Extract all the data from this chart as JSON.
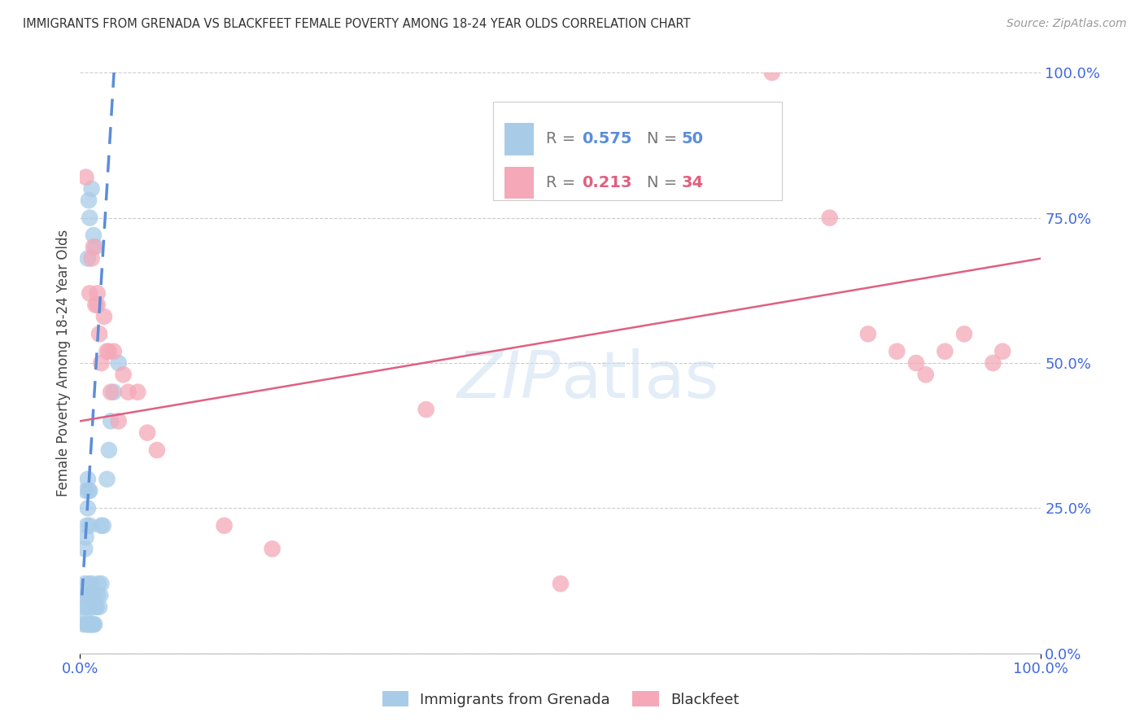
{
  "title": "IMMIGRANTS FROM GRENADA VS BLACKFEET FEMALE POVERTY AMONG 18-24 YEAR OLDS CORRELATION CHART",
  "source": "Source: ZipAtlas.com",
  "ylabel": "Female Poverty Among 18-24 Year Olds",
  "legend_label_blue": "Immigrants from Grenada",
  "legend_label_pink": "Blackfeet",
  "xlim": [
    0.0,
    1.0
  ],
  "ylim": [
    0.0,
    1.0
  ],
  "ytick_values": [
    0.0,
    0.25,
    0.5,
    0.75,
    1.0
  ],
  "ytick_labels": [
    "0.0%",
    "25.0%",
    "50.0%",
    "75.0%",
    "100.0%"
  ],
  "xtick_values": [
    0.0,
    1.0
  ],
  "xtick_labels": [
    "0.0%",
    "100.0%"
  ],
  "grid_color": "#cccccc",
  "watermark": "ZIPatlas",
  "blue_color": "#a8cce8",
  "pink_color": "#f4a8b8",
  "blue_line_color": "#5b8dd9",
  "pink_line_color": "#e06080",
  "title_color": "#333333",
  "axis_tick_color": "#4169e1",
  "background_color": "#ffffff",
  "blue_scatter_x": [
    0.004,
    0.005,
    0.005,
    0.005,
    0.006,
    0.006,
    0.006,
    0.006,
    0.007,
    0.007,
    0.007,
    0.008,
    0.008,
    0.008,
    0.008,
    0.009,
    0.009,
    0.009,
    0.01,
    0.01,
    0.01,
    0.01,
    0.011,
    0.011,
    0.012,
    0.012,
    0.013,
    0.013,
    0.014,
    0.015,
    0.016,
    0.017,
    0.018,
    0.019,
    0.02,
    0.021,
    0.022,
    0.022,
    0.024,
    0.028,
    0.03,
    0.032,
    0.035,
    0.04,
    0.008,
    0.009,
    0.01,
    0.012,
    0.014,
    0.016
  ],
  "blue_scatter_y": [
    0.05,
    0.08,
    0.12,
    0.18,
    0.06,
    0.1,
    0.2,
    0.28,
    0.05,
    0.08,
    0.22,
    0.05,
    0.1,
    0.25,
    0.3,
    0.05,
    0.12,
    0.28,
    0.05,
    0.08,
    0.22,
    0.28,
    0.05,
    0.1,
    0.05,
    0.12,
    0.05,
    0.1,
    0.05,
    0.05,
    0.08,
    0.08,
    0.1,
    0.12,
    0.08,
    0.1,
    0.12,
    0.22,
    0.22,
    0.3,
    0.35,
    0.4,
    0.45,
    0.5,
    0.68,
    0.78,
    0.75,
    0.8,
    0.72,
    0.7
  ],
  "pink_scatter_x": [
    0.006,
    0.01,
    0.012,
    0.014,
    0.016,
    0.018,
    0.018,
    0.02,
    0.022,
    0.025,
    0.028,
    0.03,
    0.032,
    0.035,
    0.04,
    0.045,
    0.05,
    0.06,
    0.07,
    0.08,
    0.15,
    0.2,
    0.36,
    0.5,
    0.72,
    0.78,
    0.82,
    0.85,
    0.87,
    0.88,
    0.9,
    0.92,
    0.95,
    0.96
  ],
  "pink_scatter_y": [
    0.82,
    0.62,
    0.68,
    0.7,
    0.6,
    0.6,
    0.62,
    0.55,
    0.5,
    0.58,
    0.52,
    0.52,
    0.45,
    0.52,
    0.4,
    0.48,
    0.45,
    0.45,
    0.38,
    0.35,
    0.22,
    0.18,
    0.42,
    0.12,
    1.0,
    0.75,
    0.55,
    0.52,
    0.5,
    0.48,
    0.52,
    0.55,
    0.5,
    0.52
  ],
  "blue_line_x": [
    0.002,
    0.036
  ],
  "blue_line_y": [
    0.1,
    1.02
  ],
  "pink_line_x": [
    0.0,
    1.0
  ],
  "pink_line_y": [
    0.4,
    0.68
  ]
}
